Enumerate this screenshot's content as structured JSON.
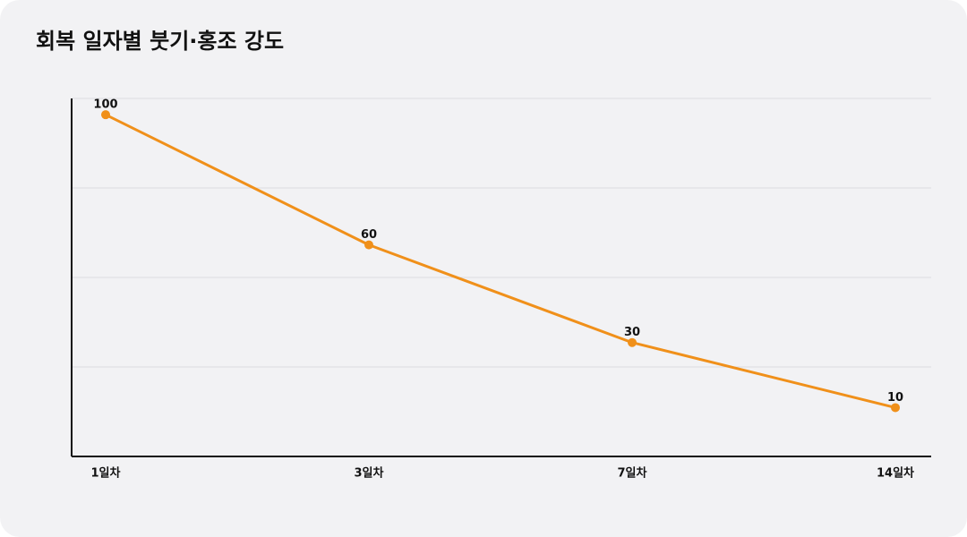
{
  "chart_data": {
    "type": "line",
    "title": "회복 일자별 붓기·홍조 강도",
    "categories": [
      "1일차",
      "3일차",
      "7일차",
      "14일차"
    ],
    "series": [
      {
        "name": "붓기·홍조 강도",
        "color": "#f0901a",
        "values": [
          100,
          60,
          30,
          10
        ]
      }
    ],
    "ylim": [
      -5,
      105
    ],
    "yticks": [
      -5,
      22.5,
      50,
      77.5,
      105
    ],
    "ytick_labels": false,
    "grid": true,
    "legend": false,
    "data_labels": true
  }
}
